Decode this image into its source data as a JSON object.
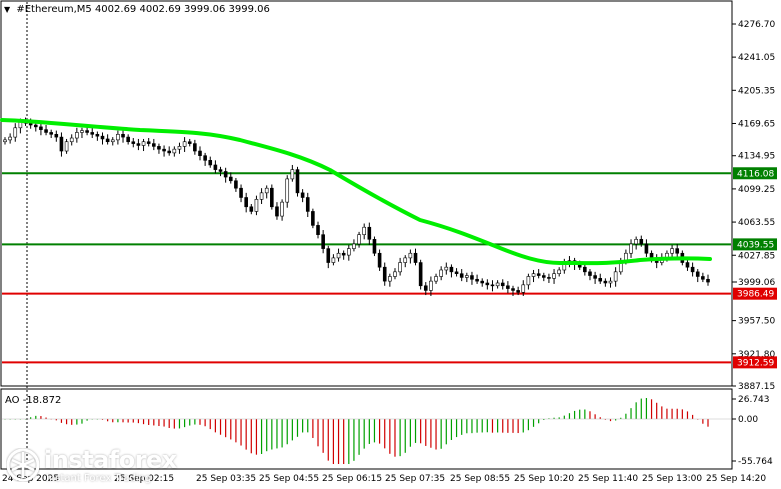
{
  "header": {
    "symbol": "#Ethereum,M5",
    "ohlc": "4002.69 4002.69 3999.06 3999.06"
  },
  "price_axis": {
    "ticks": [
      "4276.70",
      "4241.05",
      "4205.35",
      "4169.65",
      "4134.95",
      "4099.25",
      "4063.55",
      "4027.85",
      "3957.50",
      "3921.80",
      "3887.15"
    ]
  },
  "price_levels": [
    {
      "label": "4116.08",
      "value": 4116.08,
      "color": "#008000"
    },
    {
      "label": "4039.55",
      "value": 4039.55,
      "color": "#008000"
    },
    {
      "label": "3986.49",
      "value": 3986.49,
      "color": "#e00000"
    },
    {
      "label": "3912.59",
      "value": 3912.59,
      "color": "#e00000"
    }
  ],
  "current_price": {
    "label": "3999.06",
    "value": 3999.06
  },
  "ao": {
    "label": "AO -18.872",
    "ticks": [
      "26.743",
      "0.00",
      "-55.764"
    ]
  },
  "time_axis": {
    "labels": [
      "24 Sep 2025",
      "25 Sep 02:15",
      "25 Sep 03:35",
      "25 Sep 04:55",
      "25 Sep 06:15",
      "25 Sep 07:35",
      "25 Sep 08:55",
      "25 Sep 10:20",
      "25 Sep 11:40",
      "25 Sep 13:00",
      "25 Sep 14:20"
    ]
  },
  "watermark": {
    "brand": "instaforex",
    "tagline": "Instant Forex Trading"
  },
  "colors": {
    "ma_line": "#00ee00",
    "support": "#e00000",
    "resistance": "#008000",
    "ao_up": "#00a000",
    "ao_down": "#d00000"
  },
  "chart_data": {
    "type": "candlestick",
    "ylim": [
      3887.15,
      4276.7
    ],
    "close_series": [
      4152,
      4155,
      4165,
      4172,
      4170,
      4168,
      4166,
      4163,
      4160,
      4158,
      4155,
      4140,
      4150,
      4154,
      4160,
      4162,
      4160,
      4158,
      4156,
      4153,
      4150,
      4152,
      4158,
      4155,
      4150,
      4148,
      4146,
      4150,
      4148,
      4145,
      4142,
      4140,
      4138,
      4142,
      4145,
      4150,
      4148,
      4140,
      4135,
      4130,
      4125,
      4120,
      4118,
      4112,
      4108,
      4100,
      4090,
      4080,
      4075,
      4088,
      4095,
      4100,
      4080,
      4070,
      4085,
      4110,
      4120,
      4095,
      4090,
      4075,
      4060,
      4050,
      4035,
      4020,
      4025,
      4030,
      4028,
      4035,
      4040,
      4050,
      4058,
      4045,
      4030,
      4015,
      4000,
      4005,
      4010,
      4020,
      4025,
      4030,
      4020,
      3995,
      3990,
      4000,
      4005,
      4012,
      4015,
      4010,
      4008,
      4004,
      4006,
      4002,
      4000,
      3998,
      3996,
      3995,
      3998,
      3995,
      3992,
      3990,
      3988,
      3996,
      4005,
      4008,
      4006,
      4004,
      4003,
      4008,
      4012,
      4020,
      4022,
      4018,
      4015,
      4010,
      4006,
      4003,
      4000,
      3998,
      4000,
      4010,
      4022,
      4030,
      4040,
      4045,
      4040,
      4030,
      4025,
      4020,
      4025,
      4030,
      4035,
      4030,
      4020,
      4015,
      4010,
      4005,
      4002,
      3999
    ]
  }
}
